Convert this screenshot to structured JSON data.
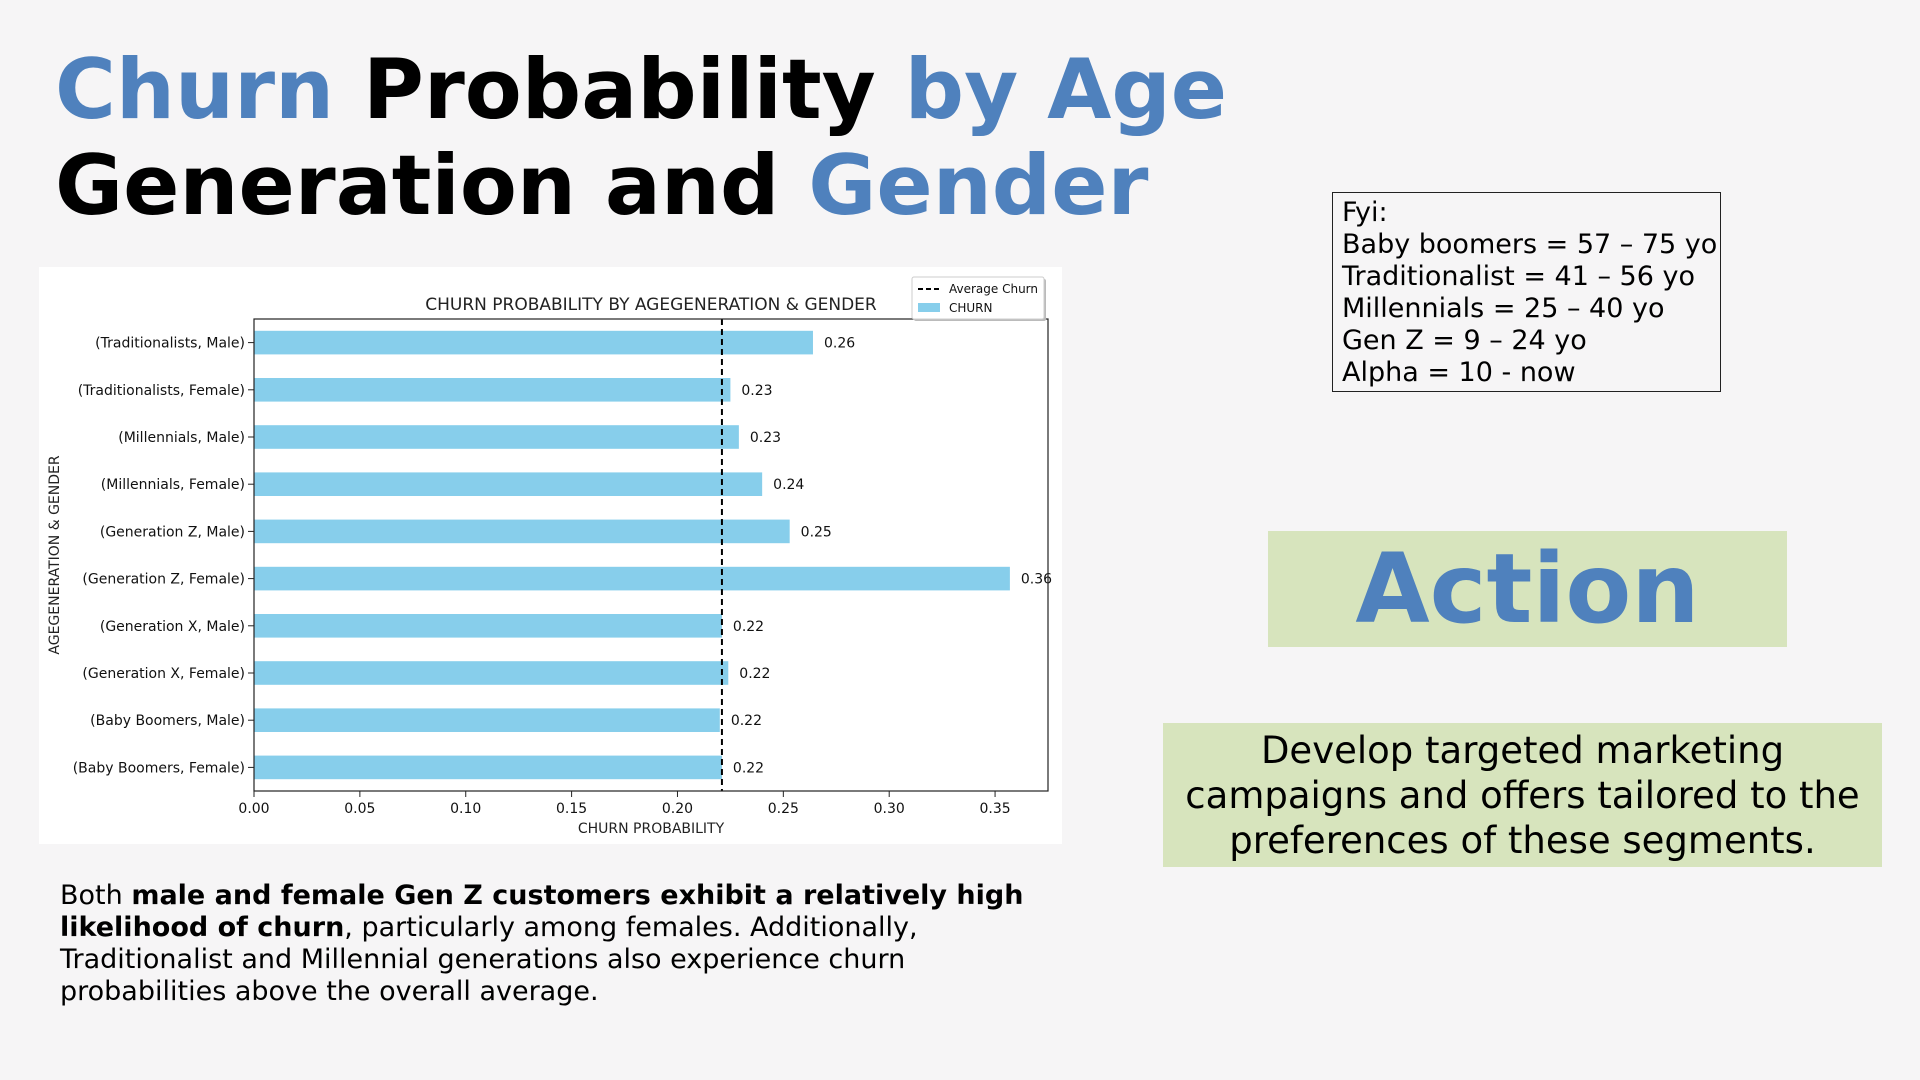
{
  "title": {
    "part1": "Churn",
    "part2": " Probability ",
    "part3": "by Age",
    "part4": "Generation and ",
    "part5": "Gender"
  },
  "summary": {
    "bold1": "male and female Gen Z customers exhibit a relatively high likelihood of churn",
    "pre": "Both ",
    "post": ", particularly among females. Additionally, Traditionalist and Millennial generations also experience churn probabilities above the overall average."
  },
  "fyi": {
    "lines": [
      "Fyi:",
      "Baby boomers = 57 – 75 yo",
      "Traditionalist = 41 – 56 yo",
      "Millennials = 25 – 40 yo",
      "Gen Z = 9 – 24 yo",
      "Alpha = 10 - now"
    ]
  },
  "action": {
    "heading": "Action",
    "text": "Develop targeted marketing campaigns and offers tailored to the preferences of these segments."
  },
  "colors": {
    "accent": "#4f81bd",
    "bar": "#87ceeb",
    "box_fill": "#d7e4bd"
  },
  "chart_data": {
    "type": "bar",
    "orientation": "horizontal",
    "title": "CHURN PROBABILITY BY AGEGENERATION & GENDER",
    "xlabel": "CHURN PROBABILITY",
    "ylabel": "AGEGENERATION & GENDER",
    "xlim": [
      0,
      0.375
    ],
    "xticks": [
      "0.00",
      "0.05",
      "0.10",
      "0.15",
      "0.20",
      "0.25",
      "0.30",
      "0.35"
    ],
    "categories": [
      "(Traditionalists, Male)",
      "(Traditionalists, Female)",
      "(Millennials, Male)",
      "(Millennials, Female)",
      "(Generation Z, Male)",
      "(Generation Z, Female)",
      "(Generation X, Male)",
      "(Generation X, Female)",
      "(Baby Boomers, Male)",
      "(Baby Boomers, Female)"
    ],
    "values": [
      0.264,
      0.225,
      0.229,
      0.24,
      0.253,
      0.357,
      0.221,
      0.224,
      0.22,
      0.221
    ],
    "value_labels": [
      "0.26",
      "0.23",
      "0.23",
      "0.24",
      "0.25",
      "0.36",
      "0.22",
      "0.22",
      "0.22",
      "0.22"
    ],
    "average_churn": 0.221,
    "legend": {
      "position": "top-right",
      "entries": [
        "Average Churn",
        "CHURN"
      ]
    },
    "grid": false
  }
}
